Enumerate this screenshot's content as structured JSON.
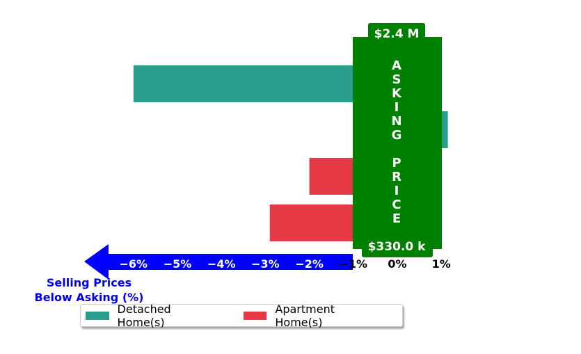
{
  "chart_data": {
    "type": "bar",
    "orientation": "horizontal",
    "xlabel": "Selling Prices\nBelow Asking (%)",
    "xlim": [
      -7,
      1.2
    ],
    "xticks": [
      "−6%",
      "−5%",
      "−4%",
      "−3%",
      "−2%",
      "−1%",
      "0%",
      "1%"
    ],
    "xtick_values": [
      -6,
      -5,
      -4,
      -3,
      -2,
      -1,
      0,
      1
    ],
    "series": [
      {
        "name": "Detached Home(s)",
        "color": "#2a9d8f"
      },
      {
        "name": "Apartment Home(s)",
        "color": "#e63946"
      }
    ],
    "bars": [
      {
        "series": "Detached Home(s)",
        "value": -6.0
      },
      {
        "series": "Detached Home(s)",
        "value": 1.15
      },
      {
        "series": "Apartment Home(s)",
        "value": -2.0
      },
      {
        "series": "Apartment Home(s)",
        "value": -2.9
      }
    ],
    "asking_price_box": {
      "label": "ASKING PRICE",
      "top_value": "$2.4 M",
      "bottom_value": "$330.0 k",
      "color": "#008000"
    },
    "arrow_color": "#0000ff",
    "legend": {
      "position": "bottom-left",
      "columns": 2
    },
    "grid": false
  }
}
